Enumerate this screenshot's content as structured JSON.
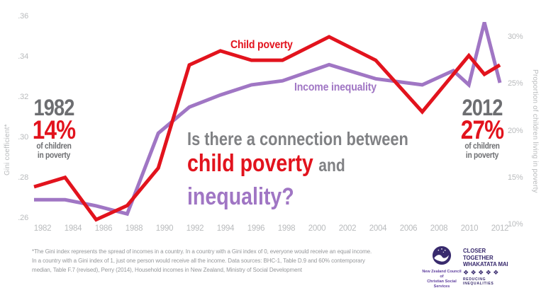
{
  "chart_data": {
    "type": "line",
    "title": {
      "line1": "Is there a connection between",
      "line2_emphasis": "child poverty",
      "line2_rest": "and",
      "line3_emphasis": "inequality?"
    },
    "x": [
      1982,
      1984,
      1986,
      1988,
      1990,
      1992,
      1994,
      1996,
      1998,
      2001,
      2004,
      2007,
      2009,
      2010,
      2011,
      2012
    ],
    "series": [
      {
        "name": "Income inequality",
        "axis": "left",
        "unit": "gini",
        "color": "#a076c4",
        "values": [
          0.269,
          0.269,
          0.266,
          0.262,
          0.302,
          0.315,
          0.321,
          0.326,
          0.328,
          0.336,
          0.329,
          0.326,
          0.333,
          0.326,
          0.357,
          0.327
        ]
      },
      {
        "name": "Child poverty",
        "axis": "right",
        "unit": "%",
        "color": "#e2131d",
        "values": [
          14,
          15,
          10.5,
          12,
          16,
          27,
          28.5,
          27.5,
          27.5,
          30,
          27.5,
          22,
          26,
          28,
          26,
          27
        ]
      }
    ],
    "left_axis": {
      "label": "Gini coefficient*",
      "ticks": [
        ".36",
        ".34",
        ".32",
        ".30",
        ".28",
        ".26"
      ],
      "tick_values": [
        0.36,
        0.34,
        0.32,
        0.3,
        0.28,
        0.26
      ],
      "range": [
        0.26,
        0.36
      ]
    },
    "right_axis": {
      "label": "Proportion of children living in poverty",
      "ticks": [
        "30%",
        "25%",
        "20%",
        "15%",
        "10%"
      ],
      "tick_values": [
        30,
        25,
        20,
        15,
        10
      ],
      "range": [
        10,
        30
      ]
    },
    "x_axis": {
      "tick_years": [
        1982,
        1984,
        1986,
        1988,
        1990,
        1992,
        1994,
        1996,
        1998,
        2000,
        2002,
        2004,
        2006,
        2008,
        2010,
        2012
      ]
    },
    "grid": false,
    "legend_position": "inline-labels"
  },
  "labels": {
    "child_poverty": "Child poverty",
    "income_inequality": "Income inequality"
  },
  "annotations": {
    "start": {
      "year": "1982",
      "pct": "14%",
      "sub1": "of children",
      "sub2": "in poverty"
    },
    "end": {
      "year": "2012",
      "pct": "27%",
      "sub1": "of children",
      "sub2": "in poverty"
    }
  },
  "footnote": {
    "line1": "*The Gini index represents the spread of incomes in a country. In a country with a Gini index of 0, everyone would receive an equal income.",
    "line2": "In a country with a Gini index of 1, just one person would receive all the income. Data sources: BHC-1, Table D.9 and 60% contemporary",
    "line3": "median, Table F.7 (revised), Perry (2014), Household incomes in New Zealand, Ministry of Social Development"
  },
  "logos": {
    "nzccss": {
      "line1": "New Zealand Council of",
      "line2": "Christian Social Services"
    },
    "closer": {
      "line1": "CLOSER TOGETHER",
      "line2": "WHAKATATA MAI",
      "diamonds": "❖❖❖❖❖",
      "line3": "REDUCING INEQUALITIES"
    }
  },
  "colors": {
    "child_poverty_red": "#e2131d",
    "inequality_purple": "#a076c4",
    "headline_gray": "#808184",
    "annotation_gray": "#6d6e71",
    "axis_gray": "#b9bbbd",
    "footnote_gray": "#96989b",
    "logo_purple": "#382a6d"
  }
}
